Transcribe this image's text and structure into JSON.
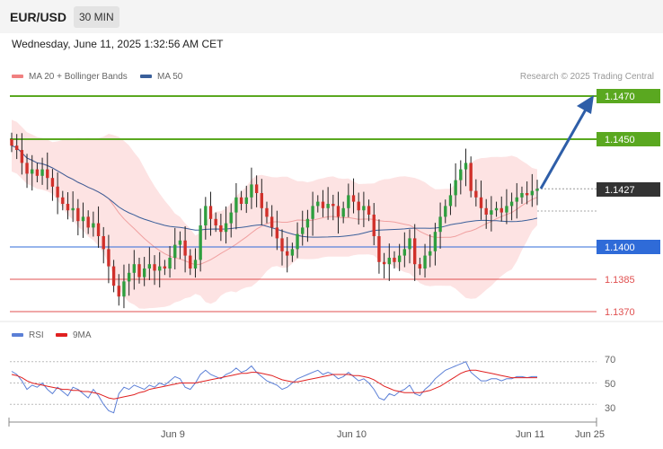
{
  "header": {
    "pair": "EUR/USD",
    "timeframe": "30 MIN",
    "datetime": "Wednesday, June 11, 2025 1:32:56 AM CET"
  },
  "legend": {
    "ma20": "MA 20 + Bollinger Bands",
    "ma50": "MA 50",
    "ma20_color": "#f08080",
    "ma50_color": "#3a5f9a",
    "credit": "Research © 2025 Trading Central"
  },
  "rsi_legend": {
    "rsi": "RSI",
    "ma9": "9MA",
    "rsi_color": "#5b7fd6",
    "ma9_color": "#e02020"
  },
  "chart_data": [
    {
      "type": "candlestick",
      "title": "",
      "x_labels": [
        "Jun 9",
        "Jun 10",
        "Jun 11",
        "Jun 25"
      ],
      "ylim": [
        1.1353,
        1.1482
      ],
      "levels": [
        {
          "value": 1.147,
          "label": "1.1470",
          "kind": "resistance",
          "color": "#5aa820"
        },
        {
          "value": 1.145,
          "label": "1.1450",
          "kind": "resistance",
          "color": "#5aa820"
        },
        {
          "value": 1.1427,
          "label": "1.1427",
          "kind": "last-price",
          "color": "#333333"
        },
        {
          "value": 1.14,
          "label": "1.1400",
          "kind": "pivot",
          "color": "#2f6bd8"
        },
        {
          "value": 1.1385,
          "label": "1.1385",
          "kind": "support",
          "color": "#e05050"
        },
        {
          "value": 1.137,
          "label": "1.1370",
          "kind": "support",
          "color": "#e05050"
        }
      ],
      "closes": [
        1.1447,
        1.1445,
        1.1439,
        1.1434,
        1.1436,
        1.1433,
        1.1436,
        1.1432,
        1.1428,
        1.1423,
        1.142,
        1.1417,
        1.1418,
        1.1412,
        1.1414,
        1.1409,
        1.1411,
        1.1405,
        1.1399,
        1.1391,
        1.1382,
        1.1377,
        1.1384,
        1.1388,
        1.1392,
        1.1386,
        1.139,
        1.1392,
        1.1389,
        1.1391,
        1.139,
        1.1395,
        1.1401,
        1.1403,
        1.1396,
        1.139,
        1.1394,
        1.141,
        1.1419,
        1.1413,
        1.141,
        1.1407,
        1.1411,
        1.1416,
        1.1423,
        1.142,
        1.1423,
        1.1429,
        1.1425,
        1.1418,
        1.1414,
        1.1409,
        1.1404,
        1.1398,
        1.1396,
        1.1399,
        1.1406,
        1.1409,
        1.1413,
        1.1419,
        1.1421,
        1.1418,
        1.142,
        1.1419,
        1.1414,
        1.1418,
        1.1424,
        1.1421,
        1.1417,
        1.1419,
        1.1415,
        1.1405,
        1.1393,
        1.1392,
        1.1395,
        1.1393,
        1.1396,
        1.1399,
        1.1404,
        1.1392,
        1.139,
        1.1396,
        1.1398,
        1.1407,
        1.1414,
        1.1419,
        1.1424,
        1.1431,
        1.1436,
        1.1439,
        1.1426,
        1.1423,
        1.1418,
        1.1415,
        1.1417,
        1.1418,
        1.1416,
        1.1419,
        1.1421,
        1.1423,
        1.1425,
        1.1424,
        1.1426,
        1.1427
      ],
      "rsi": {
        "levels": [
          70,
          50,
          30
        ],
        "ylim": [
          15,
          85
        ],
        "rsi_values": [
          61,
          58,
          52,
          44,
          48,
          46,
          50,
          44,
          40,
          46,
          42,
          38,
          46,
          44,
          40,
          36,
          44,
          38,
          30,
          24,
          22,
          40,
          46,
          44,
          48,
          46,
          44,
          48,
          46,
          50,
          48,
          52,
          56,
          54,
          46,
          44,
          50,
          58,
          62,
          58,
          56,
          54,
          58,
          60,
          64,
          60,
          62,
          66,
          60,
          56,
          52,
          50,
          48,
          44,
          46,
          50,
          54,
          56,
          58,
          60,
          62,
          58,
          60,
          58,
          54,
          56,
          60,
          56,
          52,
          54,
          50,
          44,
          36,
          34,
          40,
          38,
          42,
          44,
          48,
          40,
          38,
          44,
          48,
          54,
          58,
          62,
          64,
          66,
          68,
          70,
          60,
          56,
          52,
          52,
          54,
          54,
          52,
          54,
          54,
          56,
          56,
          55,
          56,
          56
        ],
        "ma9_values": [
          58,
          57,
          55,
          52,
          50,
          49,
          48,
          47,
          46,
          45,
          44,
          44,
          43,
          43,
          42,
          42,
          41,
          40,
          38,
          36,
          35,
          36,
          37,
          38,
          39,
          41,
          42,
          44,
          45,
          46,
          47,
          48,
          49,
          50,
          50,
          50,
          50,
          51,
          52,
          53,
          54,
          55,
          56,
          57,
          58,
          59,
          59,
          60,
          60,
          59,
          58,
          57,
          55,
          53,
          52,
          51,
          51,
          52,
          53,
          54,
          55,
          56,
          57,
          58,
          58,
          58,
          58,
          57,
          57,
          56,
          55,
          53,
          50,
          47,
          45,
          43,
          42,
          41,
          41,
          41,
          41,
          42,
          43,
          45,
          47,
          50,
          53,
          56,
          59,
          61,
          62,
          62,
          61,
          60,
          59,
          58,
          57,
          56,
          55,
          55,
          55,
          55,
          55,
          55
        ]
      }
    }
  ],
  "axis_labels": {
    "jun9": "Jun 9",
    "jun10": "Jun 10",
    "jun11": "Jun 11",
    "jun25": "Jun 25"
  },
  "price_labels": {
    "p1470": "1.1470",
    "p1450": "1.1450",
    "p1427": "1.1427",
    "p1400": "1.1400",
    "p1385": "1.1385",
    "p1370": "1.1370"
  },
  "rsi_axis": {
    "r70": "70",
    "r50": "50",
    "r30": "30"
  }
}
